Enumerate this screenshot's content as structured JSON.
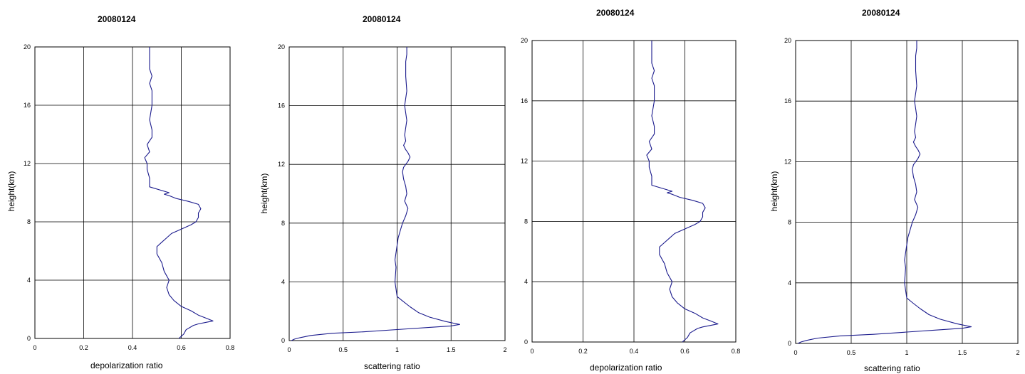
{
  "panels": [
    {
      "title": "20080124",
      "xlabel": "depolarization ratio",
      "ylabel": "height(km)",
      "x_ticks": [
        "0",
        "0.2",
        "0.4",
        "0.6",
        "0.8"
      ],
      "y_ticks": [
        "0",
        "4",
        "8",
        "12",
        "16",
        "20"
      ]
    },
    {
      "title": "20080124",
      "xlabel": "scattering ratio",
      "ylabel": "height(km)",
      "x_ticks": [
        "0",
        "0.5",
        "1",
        "1.5",
        "2"
      ],
      "y_ticks": [
        "0",
        "4",
        "8",
        "12",
        "16",
        "20"
      ]
    },
    {
      "title": "20080124",
      "xlabel": "depolarization ratio",
      "ylabel": "",
      "x_ticks": [
        "0",
        "0.2",
        "0.4",
        "0.6",
        "0.8"
      ],
      "y_ticks": [
        "0",
        "4",
        "8",
        "12",
        "16",
        "20"
      ]
    },
    {
      "title": "20080124",
      "xlabel": "scattering ratio",
      "ylabel": "height(km)",
      "x_ticks": [
        "0",
        "0.5",
        "1",
        "1.5",
        "2"
      ],
      "y_ticks": [
        "0",
        "4",
        "8",
        "12",
        "16",
        "20"
      ]
    }
  ],
  "chart_data": [
    {
      "type": "line",
      "title": "20080124",
      "xlabel": "depolarization ratio",
      "ylabel": "height(km)",
      "xlim": [
        0,
        0.8
      ],
      "ylim": [
        0,
        20
      ],
      "grid": true,
      "line_color": "#1a1a8c",
      "series": [
        {
          "x": [
            0.59,
            0.61,
            0.62,
            0.65,
            0.67,
            0.7,
            0.73,
            0.7,
            0.67,
            0.64,
            0.6,
            0.57,
            0.55,
            0.54,
            0.55,
            0.53,
            0.52,
            0.5,
            0.5,
            0.52,
            0.54,
            0.56,
            0.6,
            0.64,
            0.66,
            0.67,
            0.67,
            0.68,
            0.67,
            0.63,
            0.58,
            0.55,
            0.53,
            0.55,
            0.47,
            0.47,
            0.46,
            0.46,
            0.45,
            0.47,
            0.46,
            0.48,
            0.48,
            0.47,
            0.48,
            0.48,
            0.48,
            0.47,
            0.48,
            0.47,
            0.47,
            0.47
          ],
          "y": [
            0,
            0.3,
            0.6,
            0.9,
            1.0,
            1.1,
            1.2,
            1.4,
            1.6,
            1.9,
            2.2,
            2.6,
            3.0,
            3.5,
            4.0,
            4.6,
            5.2,
            5.8,
            6.3,
            6.6,
            6.9,
            7.2,
            7.5,
            7.8,
            8.0,
            8.3,
            8.6,
            8.9,
            9.2,
            9.4,
            9.6,
            9.8,
            9.9,
            10.0,
            10.4,
            11.0,
            11.6,
            12.0,
            12.4,
            12.8,
            13.3,
            13.8,
            14.3,
            15.0,
            16.0,
            16.5,
            17.0,
            17.5,
            18.0,
            18.5,
            19.0,
            20.0
          ]
        }
      ]
    },
    {
      "type": "line",
      "title": "20080124",
      "xlabel": "scattering ratio",
      "ylabel": "height(km)",
      "xlim": [
        0,
        2
      ],
      "ylim": [
        0,
        20
      ],
      "grid": true,
      "line_color": "#1a1a8c",
      "series": [
        {
          "x": [
            0.02,
            0.05,
            0.1,
            0.2,
            0.4,
            0.7,
            1.0,
            1.3,
            1.5,
            1.58,
            1.45,
            1.3,
            1.2,
            1.12,
            1.05,
            1.0,
            0.99,
            0.98,
            0.99,
            0.98,
            0.99,
            1.0,
            1.01,
            1.03,
            1.05,
            1.08,
            1.1,
            1.07,
            1.09,
            1.08,
            1.06,
            1.05,
            1.06,
            1.08,
            1.1,
            1.12,
            1.1,
            1.08,
            1.06,
            1.08,
            1.07,
            1.08,
            1.09,
            1.08,
            1.07,
            1.09,
            1.08,
            1.08,
            1.09,
            1.09
          ],
          "y": [
            0,
            0.1,
            0.2,
            0.35,
            0.5,
            0.6,
            0.75,
            0.9,
            1.0,
            1.1,
            1.3,
            1.6,
            1.9,
            2.3,
            2.7,
            3.0,
            3.5,
            4.0,
            5.0,
            5.5,
            6.0,
            6.5,
            7.0,
            7.5,
            8.0,
            8.5,
            9.0,
            9.5,
            10.0,
            10.5,
            11.0,
            11.5,
            11.8,
            12.0,
            12.2,
            12.5,
            12.8,
            13.0,
            13.3,
            13.6,
            14.0,
            14.5,
            15.0,
            15.5,
            16.0,
            17.0,
            18.0,
            19.0,
            19.5,
            20.0
          ]
        }
      ]
    },
    {
      "type": "line",
      "title": "20080124",
      "xlabel": "depolarization ratio",
      "ylabel": "",
      "xlim": [
        0,
        0.8
      ],
      "ylim": [
        0,
        20
      ],
      "grid": true,
      "line_color": "#1a1a8c",
      "series": [
        {
          "x": [
            0.59,
            0.61,
            0.62,
            0.65,
            0.67,
            0.7,
            0.73,
            0.7,
            0.67,
            0.64,
            0.6,
            0.57,
            0.55,
            0.54,
            0.55,
            0.53,
            0.52,
            0.5,
            0.5,
            0.52,
            0.54,
            0.56,
            0.6,
            0.64,
            0.66,
            0.67,
            0.67,
            0.68,
            0.67,
            0.63,
            0.58,
            0.55,
            0.53,
            0.55,
            0.47,
            0.47,
            0.46,
            0.46,
            0.45,
            0.47,
            0.46,
            0.48,
            0.48,
            0.47,
            0.48,
            0.48,
            0.48,
            0.47,
            0.48,
            0.47,
            0.47,
            0.47
          ],
          "y": [
            0,
            0.3,
            0.6,
            0.9,
            1.0,
            1.1,
            1.2,
            1.4,
            1.6,
            1.9,
            2.2,
            2.6,
            3.0,
            3.5,
            4.0,
            4.6,
            5.2,
            5.8,
            6.3,
            6.6,
            6.9,
            7.2,
            7.5,
            7.8,
            8.0,
            8.3,
            8.6,
            8.9,
            9.2,
            9.4,
            9.6,
            9.8,
            9.9,
            10.0,
            10.4,
            11.0,
            11.6,
            12.0,
            12.4,
            12.8,
            13.3,
            13.8,
            14.3,
            15.0,
            16.0,
            16.5,
            17.0,
            17.5,
            18.0,
            18.5,
            19.0,
            20.0
          ]
        }
      ]
    },
    {
      "type": "line",
      "title": "20080124",
      "xlabel": "scattering ratio",
      "ylabel": "height(km)",
      "xlim": [
        0,
        2
      ],
      "ylim": [
        0,
        20
      ],
      "grid": true,
      "line_color": "#1a1a8c",
      "series": [
        {
          "x": [
            0.02,
            0.05,
            0.1,
            0.2,
            0.4,
            0.7,
            1.0,
            1.3,
            1.5,
            1.58,
            1.45,
            1.3,
            1.2,
            1.12,
            1.05,
            1.0,
            0.99,
            0.98,
            0.99,
            0.98,
            0.99,
            1.0,
            1.01,
            1.03,
            1.05,
            1.08,
            1.1,
            1.07,
            1.09,
            1.08,
            1.06,
            1.05,
            1.06,
            1.08,
            1.1,
            1.12,
            1.1,
            1.08,
            1.06,
            1.08,
            1.07,
            1.08,
            1.09,
            1.08,
            1.07,
            1.09,
            1.08,
            1.08,
            1.09,
            1.09
          ],
          "y": [
            0,
            0.1,
            0.2,
            0.35,
            0.5,
            0.6,
            0.75,
            0.9,
            1.0,
            1.1,
            1.3,
            1.6,
            1.9,
            2.3,
            2.7,
            3.0,
            3.5,
            4.0,
            5.0,
            5.5,
            6.0,
            6.5,
            7.0,
            7.5,
            8.0,
            8.5,
            9.0,
            9.5,
            10.0,
            10.5,
            11.0,
            11.5,
            11.8,
            12.0,
            12.2,
            12.5,
            12.8,
            13.0,
            13.3,
            13.6,
            14.0,
            14.5,
            15.0,
            15.5,
            16.0,
            17.0,
            18.0,
            19.0,
            19.5,
            20.0
          ]
        }
      ]
    }
  ]
}
